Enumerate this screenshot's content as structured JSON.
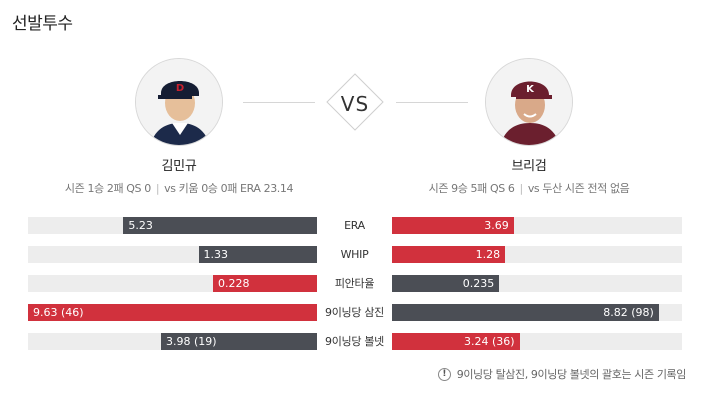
{
  "section": {
    "title": "선발투수"
  },
  "vs_label": "VS",
  "left_pitcher": {
    "name": "김민규",
    "season_record": "시즌 1승 2패 QS 0",
    "vs_record": "vs 키움 0승 0패 ERA 23.14"
  },
  "right_pitcher": {
    "name": "브리검",
    "season_record": "시즌 9승 5패 QS 6",
    "vs_record": "vs 두산 시즌 전적 없음"
  },
  "comparison": [
    {
      "label": "ERA",
      "left": {
        "value": "5.23",
        "fill": 0.67,
        "color": "gray"
      },
      "right": {
        "value": "3.69",
        "fill": 0.42,
        "color": "red"
      }
    },
    {
      "label": "WHIP",
      "left": {
        "value": "1.33",
        "fill": 0.41,
        "color": "gray"
      },
      "right": {
        "value": "1.28",
        "fill": 0.39,
        "color": "red"
      }
    },
    {
      "label": "피안타율",
      "left": {
        "value": "0.228",
        "fill": 0.36,
        "color": "red"
      },
      "right": {
        "value": "0.235",
        "fill": 0.37,
        "color": "gray"
      }
    },
    {
      "label": "9이닝당 삼진",
      "left": {
        "value": "9.63 (46)",
        "fill": 1.0,
        "color": "red"
      },
      "right": {
        "value": "8.82 (98)",
        "fill": 0.92,
        "color": "gray"
      }
    },
    {
      "label": "9이닝당 볼넷",
      "left": {
        "value": "3.98 (19)",
        "fill": 0.54,
        "color": "gray"
      },
      "right": {
        "value": "3.24 (36)",
        "fill": 0.44,
        "color": "red"
      }
    }
  ],
  "footnote": "9이닝당 탈삼진, 9이닝당 볼넷의 괄호는 시즌 기록임",
  "colors": {
    "red": "#d1313d",
    "gray": "#4b4e55",
    "track": "#ededed"
  },
  "icons": {
    "footnote": "info-icon"
  }
}
